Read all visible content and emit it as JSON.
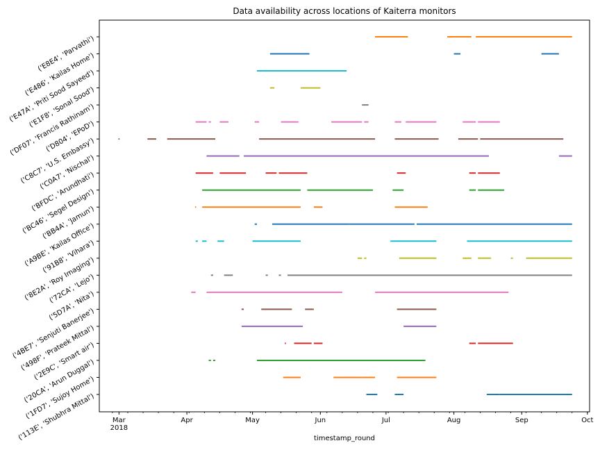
{
  "chart_data": {
    "type": "scatter",
    "title": "Data availability across locations of Kaiterra monitors",
    "xlabel": "timestamp_round",
    "ylabel": "",
    "x_range": [
      "2018-02-20",
      "2018-10-02"
    ],
    "x_ticks": [
      {
        "date": "2018-03-01",
        "label": "Mar",
        "sublabel": "2018"
      },
      {
        "date": "2018-04-01",
        "label": "Apr",
        "sublabel": ""
      },
      {
        "date": "2018-05-01",
        "label": "May",
        "sublabel": ""
      },
      {
        "date": "2018-06-01",
        "label": "Jun",
        "sublabel": ""
      },
      {
        "date": "2018-07-01",
        "label": "Jul",
        "sublabel": ""
      },
      {
        "date": "2018-08-01",
        "label": "Aug",
        "sublabel": ""
      },
      {
        "date": "2018-09-01",
        "label": "Sep",
        "sublabel": ""
      },
      {
        "date": "2018-10-01",
        "label": "Oct",
        "sublabel": ""
      }
    ],
    "palette": [
      "#1f77b4",
      "#ff7f0e",
      "#2ca02c",
      "#d62728",
      "#9467bd",
      "#8c564b",
      "#e377c2",
      "#7f7f7f",
      "#bcbd22",
      "#17becf"
    ],
    "series": [
      {
        "name": "('113E', 'Shubhra Mittal')",
        "color": "#1f77b4",
        "segments": [
          [
            "2018-06-22",
            "2018-06-27"
          ],
          [
            "2018-07-05",
            "2018-07-09"
          ],
          [
            "2018-08-16",
            "2018-08-22"
          ],
          [
            "2018-08-22",
            "2018-09-24"
          ]
        ]
      },
      {
        "name": "('1FD7', 'Sujoy Home')",
        "color": "#ff7f0e",
        "segments": [
          [
            "2018-05-15",
            "2018-05-23"
          ],
          [
            "2018-06-07",
            "2018-06-20"
          ],
          [
            "2018-06-20",
            "2018-06-26"
          ],
          [
            "2018-07-06",
            "2018-07-24"
          ]
        ]
      },
      {
        "name": "('20CA', 'Arun Duggal')",
        "color": "#2ca02c",
        "segments": [
          [
            "2018-04-11",
            "2018-04-12"
          ],
          [
            "2018-04-13",
            "2018-04-14"
          ],
          [
            "2018-05-03",
            "2018-07-19"
          ]
        ]
      },
      {
        "name": "('2E9C', 'Smart air')",
        "color": "#d62728",
        "segments": [
          [
            "2018-05-16",
            "2018-05-16"
          ],
          [
            "2018-05-20",
            "2018-05-28"
          ],
          [
            "2018-05-29",
            "2018-06-02"
          ],
          [
            "2018-08-08",
            "2018-08-11"
          ],
          [
            "2018-08-12",
            "2018-08-28"
          ]
        ]
      },
      {
        "name": "('498F', 'Prateek Mittal')",
        "color": "#9467bd",
        "segments": [
          [
            "2018-04-26",
            "2018-05-24"
          ],
          [
            "2018-07-09",
            "2018-07-24"
          ]
        ]
      },
      {
        "name": "('4BE7', 'Senjuti Banerjee')",
        "color": "#8c564b",
        "segments": [
          [
            "2018-04-26",
            "2018-04-27"
          ],
          [
            "2018-05-05",
            "2018-05-19"
          ],
          [
            "2018-05-25",
            "2018-05-29"
          ],
          [
            "2018-07-06",
            "2018-07-24"
          ]
        ]
      },
      {
        "name": "('5D7A', 'Nita')",
        "color": "#e377c2",
        "segments": [
          [
            "2018-04-03",
            "2018-04-05"
          ],
          [
            "2018-04-10",
            "2018-06-11"
          ],
          [
            "2018-06-26",
            "2018-08-26"
          ]
        ]
      },
      {
        "name": "('72CA', 'Lejo')",
        "color": "#7f7f7f",
        "segments": [
          [
            "2018-04-12",
            "2018-04-13"
          ],
          [
            "2018-04-18",
            "2018-04-22"
          ],
          [
            "2018-05-07",
            "2018-05-08"
          ],
          [
            "2018-05-13",
            "2018-05-14"
          ],
          [
            "2018-05-17",
            "2018-09-24"
          ]
        ]
      },
      {
        "name": "('8E2A', 'Roy Imaging')",
        "color": "#bcbd22",
        "segments": [
          [
            "2018-06-18",
            "2018-06-20"
          ],
          [
            "2018-06-21",
            "2018-06-22"
          ],
          [
            "2018-07-07",
            "2018-07-24"
          ],
          [
            "2018-08-05",
            "2018-08-09"
          ],
          [
            "2018-08-12",
            "2018-08-18"
          ],
          [
            "2018-08-27",
            "2018-08-28"
          ],
          [
            "2018-09-03",
            "2018-09-24"
          ]
        ]
      },
      {
        "name": "('91B8', 'Vihara')",
        "color": "#17becf",
        "segments": [
          [
            "2018-04-05",
            "2018-04-06"
          ],
          [
            "2018-04-08",
            "2018-04-10"
          ],
          [
            "2018-04-15",
            "2018-04-18"
          ],
          [
            "2018-05-01",
            "2018-05-23"
          ],
          [
            "2018-07-03",
            "2018-07-24"
          ],
          [
            "2018-08-07",
            "2018-09-24"
          ]
        ]
      },
      {
        "name": "('A9BE', 'Kailas Office')",
        "color": "#1f77b4",
        "segments": [
          [
            "2018-05-02",
            "2018-05-03"
          ],
          [
            "2018-05-10",
            "2018-06-14"
          ],
          [
            "2018-06-14",
            "2018-07-14"
          ],
          [
            "2018-07-15",
            "2018-09-24"
          ]
        ]
      },
      {
        "name": "('BB4A', 'Jamun')",
        "color": "#ff7f0e",
        "segments": [
          [
            "2018-04-05",
            "2018-04-05"
          ],
          [
            "2018-04-08",
            "2018-05-23"
          ],
          [
            "2018-05-29",
            "2018-06-02"
          ],
          [
            "2018-07-05",
            "2018-07-20"
          ]
        ]
      },
      {
        "name": "('BC46', 'Segel Design')",
        "color": "#2ca02c",
        "segments": [
          [
            "2018-04-08",
            "2018-05-23"
          ],
          [
            "2018-05-26",
            "2018-06-25"
          ],
          [
            "2018-07-04",
            "2018-07-09"
          ],
          [
            "2018-08-08",
            "2018-08-11"
          ],
          [
            "2018-08-12",
            "2018-08-24"
          ]
        ]
      },
      {
        "name": "('BFDC', 'Arundhati')",
        "color": "#d62728",
        "segments": [
          [
            "2018-04-05",
            "2018-04-13"
          ],
          [
            "2018-04-16",
            "2018-04-28"
          ],
          [
            "2018-05-07",
            "2018-05-12"
          ],
          [
            "2018-05-13",
            "2018-05-26"
          ],
          [
            "2018-07-06",
            "2018-07-10"
          ],
          [
            "2018-08-08",
            "2018-08-11"
          ],
          [
            "2018-08-12",
            "2018-08-22"
          ]
        ]
      },
      {
        "name": "('C0A7', 'Nischal')",
        "color": "#9467bd",
        "segments": [
          [
            "2018-04-10",
            "2018-04-25"
          ],
          [
            "2018-04-27",
            "2018-08-17"
          ],
          [
            "2018-09-18",
            "2018-09-24"
          ]
        ]
      },
      {
        "name": "('C8C7', 'U.S. Embassy')",
        "color": "#8c564b",
        "segments": [
          [
            "2018-03-01",
            "2018-03-01"
          ],
          [
            "2018-03-14",
            "2018-03-18"
          ],
          [
            "2018-03-23",
            "2018-04-14"
          ],
          [
            "2018-05-04",
            "2018-06-26"
          ],
          [
            "2018-07-05",
            "2018-07-25"
          ],
          [
            "2018-08-03",
            "2018-08-12"
          ],
          [
            "2018-08-13",
            "2018-09-20"
          ]
        ]
      },
      {
        "name": "('D804', 'EPoD')",
        "color": "#e377c2",
        "segments": [
          [
            "2018-04-05",
            "2018-04-10"
          ],
          [
            "2018-04-11",
            "2018-04-12"
          ],
          [
            "2018-04-16",
            "2018-04-20"
          ],
          [
            "2018-05-02",
            "2018-05-04"
          ],
          [
            "2018-05-14",
            "2018-05-22"
          ],
          [
            "2018-06-06",
            "2018-06-20"
          ],
          [
            "2018-06-21",
            "2018-06-23"
          ],
          [
            "2018-07-05",
            "2018-07-08"
          ],
          [
            "2018-07-10",
            "2018-07-24"
          ],
          [
            "2018-08-05",
            "2018-08-11"
          ],
          [
            "2018-08-12",
            "2018-08-22"
          ]
        ]
      },
      {
        "name": "('DF07', 'Francis Rathinam')",
        "color": "#7f7f7f",
        "segments": [
          [
            "2018-06-20",
            "2018-06-23"
          ]
        ]
      },
      {
        "name": "('E1F8', 'Sonal Sood')",
        "color": "#bcbd22",
        "segments": [
          [
            "2018-05-09",
            "2018-05-11"
          ],
          [
            "2018-05-23",
            "2018-06-01"
          ]
        ]
      },
      {
        "name": "('E47A', 'Priti Sood Sayeed')",
        "color": "#17becf",
        "segments": [
          [
            "2018-05-03",
            "2018-06-13"
          ]
        ]
      },
      {
        "name": "('E486', 'Kailas Home')",
        "color": "#1f77b4",
        "segments": [
          [
            "2018-05-09",
            "2018-05-27"
          ],
          [
            "2018-08-01",
            "2018-08-04"
          ],
          [
            "2018-09-10",
            "2018-09-18"
          ]
        ]
      },
      {
        "name": "('E8E4', 'Parvathi')",
        "color": "#ff7f0e",
        "segments": [
          [
            "2018-06-26",
            "2018-07-11"
          ],
          [
            "2018-07-29",
            "2018-08-09"
          ],
          [
            "2018-08-11",
            "2018-09-24"
          ]
        ]
      }
    ],
    "grid": false,
    "legend": "none"
  }
}
